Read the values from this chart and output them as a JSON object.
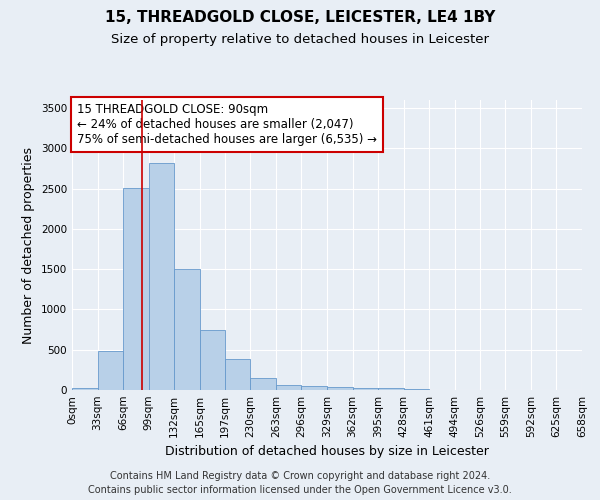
{
  "title": "15, THREADGOLD CLOSE, LEICESTER, LE4 1BY",
  "subtitle": "Size of property relative to detached houses in Leicester",
  "xlabel": "Distribution of detached houses by size in Leicester",
  "ylabel": "Number of detached properties",
  "footer_line1": "Contains HM Land Registry data © Crown copyright and database right 2024.",
  "footer_line2": "Contains public sector information licensed under the Open Government Licence v3.0.",
  "annotation_line1": "15 THREADGOLD CLOSE: 90sqm",
  "annotation_line2": "← 24% of detached houses are smaller (2,047)",
  "annotation_line3": "75% of semi-detached houses are larger (6,535) →",
  "property_size_sqm": 90,
  "bin_edges": [
    0,
    33,
    66,
    99,
    132,
    165,
    197,
    230,
    263,
    296,
    329,
    362,
    395,
    428,
    461,
    494,
    526,
    559,
    592,
    625,
    658
  ],
  "bin_labels": [
    "0sqm",
    "33sqm",
    "66sqm",
    "99sqm",
    "132sqm",
    "165sqm",
    "197sqm",
    "230sqm",
    "263sqm",
    "296sqm",
    "329sqm",
    "362sqm",
    "395sqm",
    "428sqm",
    "461sqm",
    "494sqm",
    "526sqm",
    "559sqm",
    "592sqm",
    "625sqm",
    "658sqm"
  ],
  "bar_values": [
    20,
    480,
    2510,
    2820,
    1500,
    750,
    380,
    155,
    65,
    50,
    40,
    30,
    20,
    10,
    5,
    3,
    2,
    2,
    1,
    1
  ],
  "bar_color": "#b8d0e8",
  "bar_edge_color": "#6699cc",
  "vline_x": 90,
  "vline_color": "#cc0000",
  "ylim": [
    0,
    3600
  ],
  "yticks": [
    0,
    500,
    1000,
    1500,
    2000,
    2500,
    3000,
    3500
  ],
  "bg_color": "#e8eef5",
  "grid_color": "#ffffff",
  "annotation_box_color": "#ffffff",
  "annotation_box_edge": "#cc0000",
  "title_fontsize": 11,
  "subtitle_fontsize": 9.5,
  "axis_label_fontsize": 9,
  "tick_fontsize": 7.5,
  "annotation_fontsize": 8.5,
  "footer_fontsize": 7
}
